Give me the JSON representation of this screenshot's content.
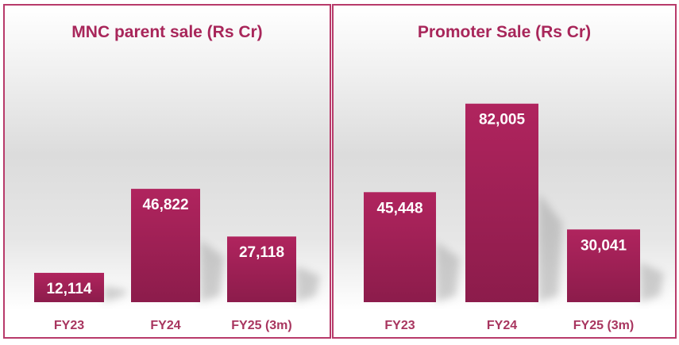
{
  "chart_data": [
    {
      "type": "bar",
      "title": "MNC parent sale (Rs Cr)",
      "categories": [
        "FY23",
        "FY24",
        "FY25 (3m)"
      ],
      "values": [
        12114,
        46822,
        27118
      ],
      "value_labels": [
        "12,114",
        "46,822",
        "27,118"
      ],
      "xlabel": "",
      "ylabel": "",
      "grid": false,
      "legend": "none"
    },
    {
      "type": "bar",
      "title": "Promoter Sale (Rs Cr)",
      "categories": [
        "FY23",
        "FY24",
        "FY25 (3m)"
      ],
      "values": [
        45448,
        82005,
        30041
      ],
      "value_labels": [
        "45,448",
        "82,005",
        "30,041"
      ],
      "xlabel": "",
      "ylabel": "",
      "grid": false,
      "legend": "none"
    }
  ],
  "colors": {
    "bar_top": "#b0245e",
    "bar_bottom": "#8c1c4b",
    "border": "#b83a6a",
    "category_text": "#a8355f"
  }
}
